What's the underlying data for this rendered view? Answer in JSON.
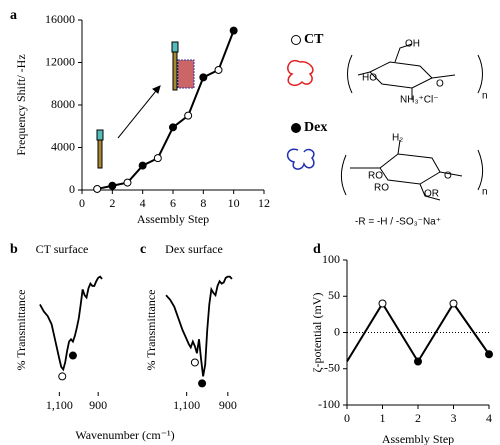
{
  "chart_data": [
    {
      "type": "line",
      "panel": "a",
      "xlabel": "Assembly Step",
      "ylabel": "Frequency Shift/ -Hz",
      "x": [
        1,
        2,
        3,
        4,
        5,
        6,
        7,
        8,
        9,
        10
      ],
      "values": [
        100,
        400,
        700,
        2300,
        3000,
        5900,
        7000,
        10600,
        11300,
        15000
      ],
      "markers": [
        "open",
        "filled",
        "open",
        "filled",
        "open",
        "filled",
        "open",
        "filled",
        "open",
        "filled"
      ],
      "color": "#000000",
      "xlim": [
        0,
        12
      ],
      "xticks": [
        0,
        2,
        4,
        6,
        8,
        10,
        12
      ],
      "ylim": [
        0,
        16000
      ],
      "yticks": [
        0,
        4000,
        8000,
        12000,
        16000
      ]
    },
    {
      "type": "spectrum",
      "panel": "b",
      "title": "CT surface",
      "ylabel": "% Transmittance",
      "xlabel": "Wavenumber (cm⁻¹)",
      "x": [
        1200,
        1180,
        1160,
        1140,
        1120,
        1100,
        1090,
        1080,
        1070,
        1060,
        1050,
        1040,
        1030,
        1020,
        1010,
        1000,
        990,
        980,
        970,
        960,
        950,
        940,
        930,
        920,
        910,
        900,
        890,
        880
      ],
      "values": [
        72,
        66,
        62,
        55,
        40,
        25,
        18,
        16,
        22,
        32,
        40,
        42,
        40,
        45,
        52,
        60,
        72,
        85,
        80,
        78,
        86,
        90,
        88,
        88,
        92,
        95,
        96,
        94
      ],
      "points": {
        "x": [
          1085,
          1030
        ],
        "y": [
          10,
          28
        ],
        "markers": [
          "open",
          "filled"
        ]
      },
      "color": "#000000",
      "xlim": [
        1210,
        870
      ],
      "xticks": [
        {
          "value": 1100,
          "label": "1,100"
        },
        900
      ],
      "ylim": [
        0,
        100
      ]
    },
    {
      "type": "spectrum",
      "panel": "c",
      "title": "Dex surface",
      "ylabel": "% Transmittance",
      "x": [
        1200,
        1180,
        1160,
        1140,
        1120,
        1100,
        1090,
        1080,
        1070,
        1060,
        1050,
        1040,
        1030,
        1020,
        1010,
        1000,
        990,
        980,
        970,
        960,
        950,
        940,
        930,
        920,
        910,
        900,
        890,
        880
      ],
      "values": [
        80,
        76,
        70,
        60,
        50,
        42,
        38,
        35,
        40,
        36,
        30,
        42,
        25,
        10,
        20,
        50,
        72,
        85,
        82,
        80,
        88,
        92,
        90,
        91,
        95,
        96,
        96,
        94
      ],
      "points": {
        "x": [
          1060,
          1025
        ],
        "y": [
          22,
          4
        ],
        "markers": [
          "open",
          "filled"
        ]
      },
      "color": "#000000",
      "xlim": [
        1210,
        870
      ],
      "xticks": [
        {
          "value": 1100,
          "label": "1,100"
        },
        900
      ],
      "ylim": [
        0,
        100
      ]
    },
    {
      "type": "line",
      "panel": "d",
      "xlabel": "Assembly Step",
      "ylabel": "ζ-potential (mV)",
      "x": [
        0,
        1,
        2,
        3,
        4
      ],
      "values": [
        -40,
        40,
        -40,
        40,
        -30
      ],
      "markers": [
        "none",
        "open",
        "filled",
        "open",
        "filled"
      ],
      "color": "#000000",
      "reference_line": 0,
      "xlim": [
        0,
        4
      ],
      "xticks": [
        0,
        1,
        2,
        3,
        4
      ],
      "ylim": [
        -100,
        100
      ],
      "yticks": [
        -100,
        -50,
        0,
        50,
        100
      ]
    }
  ],
  "structures": {
    "ct": {
      "name": "CT",
      "oh": "OH",
      "ho": "HO",
      "o": "O",
      "amine": "NH₃⁺Cl⁻",
      "n": "n"
    },
    "dex": {
      "name": "Dex",
      "h2": "H₂",
      "ro1": "RO",
      "ro2": "RO",
      "or": "OR",
      "o": "O",
      "n": "n",
      "note": "-R = -H / -SO₃⁻Na⁺"
    }
  }
}
